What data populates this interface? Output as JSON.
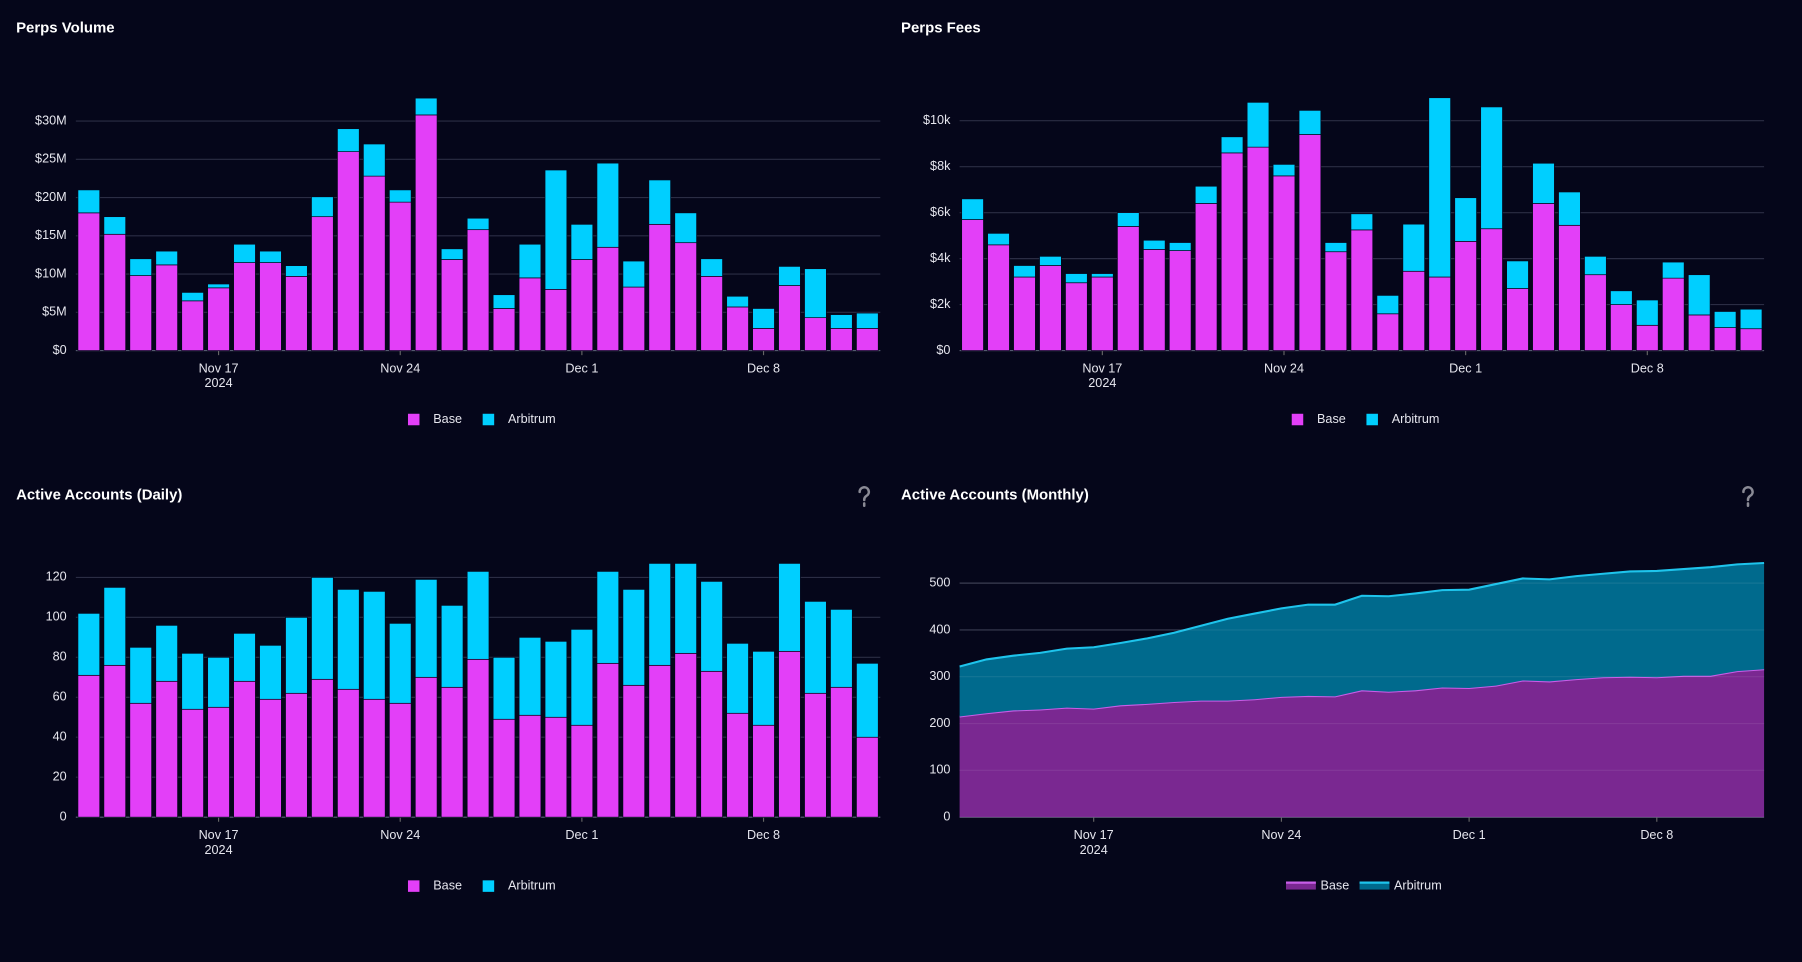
{
  "chart_data": [
    {
      "type": "bar",
      "title": "Perps Volume",
      "categories": [
        "2024-11-12",
        "2024-11-13",
        "2024-11-14",
        "2024-11-15",
        "2024-11-16",
        "2024-11-17",
        "2024-11-18",
        "2024-11-19",
        "2024-11-20",
        "2024-11-21",
        "2024-11-22",
        "2024-11-23",
        "2024-11-24",
        "2024-11-25",
        "2024-11-26",
        "2024-11-27",
        "2024-11-28",
        "2024-11-29",
        "2024-11-30",
        "2024-12-01",
        "2024-12-02",
        "2024-12-03",
        "2024-12-04",
        "2024-12-05",
        "2024-12-06",
        "2024-12-07",
        "2024-12-08",
        "2024-12-09",
        "2024-12-10",
        "2024-12-11",
        "2024-12-12"
      ],
      "series": [
        {
          "name": "Base",
          "color": "#e33ff8",
          "values": [
            18000000,
            15200000,
            9800000,
            11200000,
            6500000,
            8200000,
            11500000,
            11500000,
            9700000,
            17500000,
            26000000,
            22800000,
            19400000,
            30800000,
            11900000,
            15800000,
            5500000,
            9500000,
            8000000,
            11900000,
            13500000,
            8300000,
            16500000,
            14100000,
            9700000,
            5700000,
            2900000,
            8500000,
            4300000,
            2900000,
            2900000
          ]
        },
        {
          "name": "Arbitrum",
          "color": "#00cfff",
          "values": [
            3000000,
            2300000,
            2200000,
            1800000,
            1100000,
            500000,
            2400000,
            1500000,
            1400000,
            2600000,
            3000000,
            4200000,
            1600000,
            2200000,
            1400000,
            1500000,
            1800000,
            4400000,
            15600000,
            4600000,
            11000000,
            3400000,
            5800000,
            3900000,
            2300000,
            1400000,
            2600000,
            2500000,
            6400000,
            1800000,
            2000000
          ]
        }
      ],
      "ylim": [
        0,
        35000000
      ],
      "yticks": [
        {
          "value": 0,
          "label": "$0"
        },
        {
          "value": 5000000,
          "label": "$5M"
        },
        {
          "value": 10000000,
          "label": "$10M"
        },
        {
          "value": 15000000,
          "label": "$15M"
        },
        {
          "value": 20000000,
          "label": "$20M"
        },
        {
          "value": 25000000,
          "label": "$25M"
        },
        {
          "value": 30000000,
          "label": "$30M"
        }
      ],
      "xticks": [
        {
          "value": "2024-11-17",
          "label": "Nov 17"
        },
        {
          "value": "2024-11-24",
          "label": "Nov 24"
        },
        {
          "value": "2024-12-01",
          "label": "Dec 1"
        },
        {
          "value": "2024-12-08",
          "label": "Dec 8"
        }
      ],
      "x_year": "2024",
      "grid": true,
      "stacked": true,
      "legend": "bottom"
    },
    {
      "type": "bar",
      "title": "Perps Fees",
      "categories": [
        "2024-11-12",
        "2024-11-13",
        "2024-11-14",
        "2024-11-15",
        "2024-11-16",
        "2024-11-17",
        "2024-11-18",
        "2024-11-19",
        "2024-11-20",
        "2024-11-21",
        "2024-11-22",
        "2024-11-23",
        "2024-11-24",
        "2024-11-25",
        "2024-11-26",
        "2024-11-27",
        "2024-11-28",
        "2024-11-29",
        "2024-11-30",
        "2024-12-01",
        "2024-12-02",
        "2024-12-03",
        "2024-12-04",
        "2024-12-05",
        "2024-12-06",
        "2024-12-07",
        "2024-12-08",
        "2024-12-09",
        "2024-12-10",
        "2024-12-11",
        "2024-12-12"
      ],
      "series": [
        {
          "name": "Base",
          "color": "#e33ff8",
          "values": [
            5700,
            4600,
            3200,
            3700,
            2950,
            3200,
            5400,
            4400,
            4350,
            6400,
            8600,
            8850,
            7600,
            9400,
            4300,
            5250,
            1600,
            3450,
            3200,
            4750,
            5300,
            2700,
            6400,
            5450,
            3300,
            2000,
            1100,
            3150,
            1550,
            1000,
            950
          ]
        },
        {
          "name": "Arbitrum",
          "color": "#00cfff",
          "values": [
            900,
            500,
            500,
            400,
            400,
            150,
            600,
            400,
            350,
            750,
            700,
            1950,
            500,
            1050,
            400,
            700,
            800,
            2050,
            7800,
            1900,
            5300,
            1200,
            1750,
            1450,
            800,
            600,
            1100,
            700,
            1750,
            700,
            850
          ]
        }
      ],
      "ylim": [
        0,
        11500
      ],
      "yticks": [
        {
          "value": 0,
          "label": "$0"
        },
        {
          "value": 2000,
          "label": "$2k"
        },
        {
          "value": 4000,
          "label": "$4k"
        },
        {
          "value": 6000,
          "label": "$6k"
        },
        {
          "value": 8000,
          "label": "$8k"
        },
        {
          "value": 10000,
          "label": "$10k"
        }
      ],
      "xticks": [
        {
          "value": "2024-11-17",
          "label": "Nov 17"
        },
        {
          "value": "2024-11-24",
          "label": "Nov 24"
        },
        {
          "value": "2024-12-01",
          "label": "Dec 1"
        },
        {
          "value": "2024-12-08",
          "label": "Dec 8"
        }
      ],
      "x_year": "2024",
      "grid": true,
      "stacked": true,
      "legend": "bottom"
    },
    {
      "type": "bar",
      "title": "Active Accounts (Daily)",
      "categories": [
        "2024-11-12",
        "2024-11-13",
        "2024-11-14",
        "2024-11-15",
        "2024-11-16",
        "2024-11-17",
        "2024-11-18",
        "2024-11-19",
        "2024-11-20",
        "2024-11-21",
        "2024-11-22",
        "2024-11-23",
        "2024-11-24",
        "2024-11-25",
        "2024-11-26",
        "2024-11-27",
        "2024-11-28",
        "2024-11-29",
        "2024-11-30",
        "2024-12-01",
        "2024-12-02",
        "2024-12-03",
        "2024-12-04",
        "2024-12-05",
        "2024-12-06",
        "2024-12-07",
        "2024-12-08",
        "2024-12-09",
        "2024-12-10",
        "2024-12-11",
        "2024-12-12"
      ],
      "series": [
        {
          "name": "Base",
          "color": "#e33ff8",
          "values": [
            71,
            76,
            57,
            68,
            54,
            55,
            68,
            59,
            62,
            69,
            64,
            59,
            57,
            70,
            65,
            79,
            49,
            51,
            50,
            46,
            77,
            66,
            76,
            82,
            73,
            52,
            46,
            83,
            62,
            65,
            40
          ]
        },
        {
          "name": "Arbitrum",
          "color": "#00cfff",
          "values": [
            31,
            39,
            28,
            28,
            28,
            25,
            24,
            27,
            38,
            51,
            50,
            54,
            40,
            49,
            41,
            44,
            31,
            39,
            38,
            48,
            46,
            48,
            51,
            45,
            45,
            35,
            37,
            44,
            46,
            39,
            37
          ]
        }
      ],
      "ylim": [
        0,
        130
      ],
      "yticks": [
        0,
        20,
        40,
        60,
        80,
        100,
        120
      ],
      "xticks": [
        {
          "value": "2024-11-17",
          "label": "Nov 17"
        },
        {
          "value": "2024-11-24",
          "label": "Nov 24"
        },
        {
          "value": "2024-12-01",
          "label": "Dec 1"
        },
        {
          "value": "2024-12-08",
          "label": "Dec 8"
        }
      ],
      "x_year": "2024",
      "grid": true,
      "stacked": true,
      "legend": "bottom",
      "help": true
    },
    {
      "type": "area",
      "title": "Active Accounts (Monthly)",
      "x": [
        "2024-11-12",
        "2024-11-13",
        "2024-11-14",
        "2024-11-15",
        "2024-11-16",
        "2024-11-17",
        "2024-11-18",
        "2024-11-19",
        "2024-11-20",
        "2024-11-21",
        "2024-11-22",
        "2024-11-23",
        "2024-11-24",
        "2024-11-25",
        "2024-11-26",
        "2024-11-27",
        "2024-11-28",
        "2024-11-29",
        "2024-11-30",
        "2024-12-01",
        "2024-12-02",
        "2024-12-03",
        "2024-12-04",
        "2024-12-05",
        "2024-12-06",
        "2024-12-07",
        "2024-12-08",
        "2024-12-09",
        "2024-12-10",
        "2024-12-11",
        "2024-12-12"
      ],
      "series": [
        {
          "name": "Base",
          "color": "#c85ee8",
          "fill": "#7a2891",
          "values": [
            215,
            222,
            228,
            230,
            234,
            232,
            239,
            242,
            246,
            249,
            249,
            252,
            257,
            259,
            258,
            271,
            268,
            271,
            277,
            276,
            281,
            292,
            290,
            295,
            299,
            300,
            299,
            302,
            302,
            312,
            316
          ]
        },
        {
          "name": "Arbitrum",
          "color": "#1ec4ec",
          "fill": "#006a8d",
          "values": [
            107,
            115,
            117,
            121,
            126,
            131,
            133,
            140,
            148,
            160,
            175,
            183,
            189,
            195,
            196,
            202,
            204,
            207,
            208,
            210,
            217,
            218,
            218,
            220,
            221,
            225,
            227,
            228,
            232,
            228,
            227
          ]
        }
      ],
      "xlim": [
        "2024-11-12",
        "2024-12-12"
      ],
      "ylim": [
        0,
        550
      ],
      "yticks": [
        0,
        100,
        200,
        300,
        400,
        500
      ],
      "xticks": [
        {
          "value": "2024-11-17",
          "label": "Nov 17"
        },
        {
          "value": "2024-11-24",
          "label": "Nov 24"
        },
        {
          "value": "2024-12-01",
          "label": "Dec 1"
        },
        {
          "value": "2024-12-08",
          "label": "Dec 8"
        }
      ],
      "x_year": "2024",
      "grid": true,
      "stacked": true,
      "legend": "bottom",
      "help": true
    }
  ]
}
